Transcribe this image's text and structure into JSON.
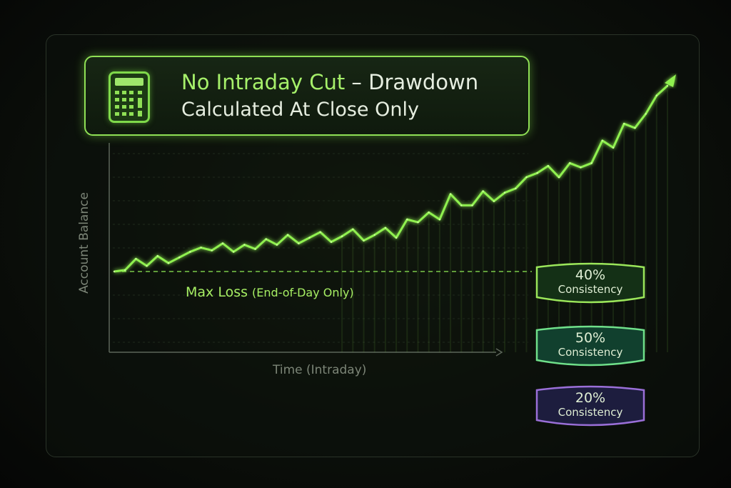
{
  "header": {
    "title_highlight": "No Intraday Cut",
    "title_rest": " – Drawdown",
    "subtitle": "Calculated At Close Only",
    "icon": "calculator-icon"
  },
  "chart_data": {
    "type": "line",
    "xlabel": "Time (Intraday)",
    "ylabel": "Account Balance",
    "grid": true,
    "values": [
      0,
      1,
      9,
      4,
      11,
      6,
      10,
      14,
      17,
      15,
      20,
      14,
      19,
      16,
      23,
      19,
      26,
      20,
      24,
      28,
      21,
      25,
      30,
      22,
      26,
      31,
      24,
      37,
      35,
      42,
      37,
      55,
      47,
      47,
      57,
      50,
      56,
      59,
      67,
      70,
      75,
      67,
      77,
      74,
      77,
      93,
      88,
      105,
      102,
      112,
      125,
      132
    ],
    "reference_line": {
      "label": "Max Loss",
      "label_note": "(End-of-Day Only)",
      "value": 0,
      "style": "dashed"
    },
    "line_color": "#8ff04f"
  },
  "badges": [
    {
      "percent": "40%",
      "label": "Consistency",
      "border": "#9be65a",
      "fill": "#143016"
    },
    {
      "percent": "50%",
      "label": "Consistency",
      "border": "#6fe08a",
      "fill": "#11402e"
    },
    {
      "percent": "20%",
      "label": "Consistency",
      "border": "#9a6fd8",
      "fill": "#1d1d3e"
    }
  ]
}
